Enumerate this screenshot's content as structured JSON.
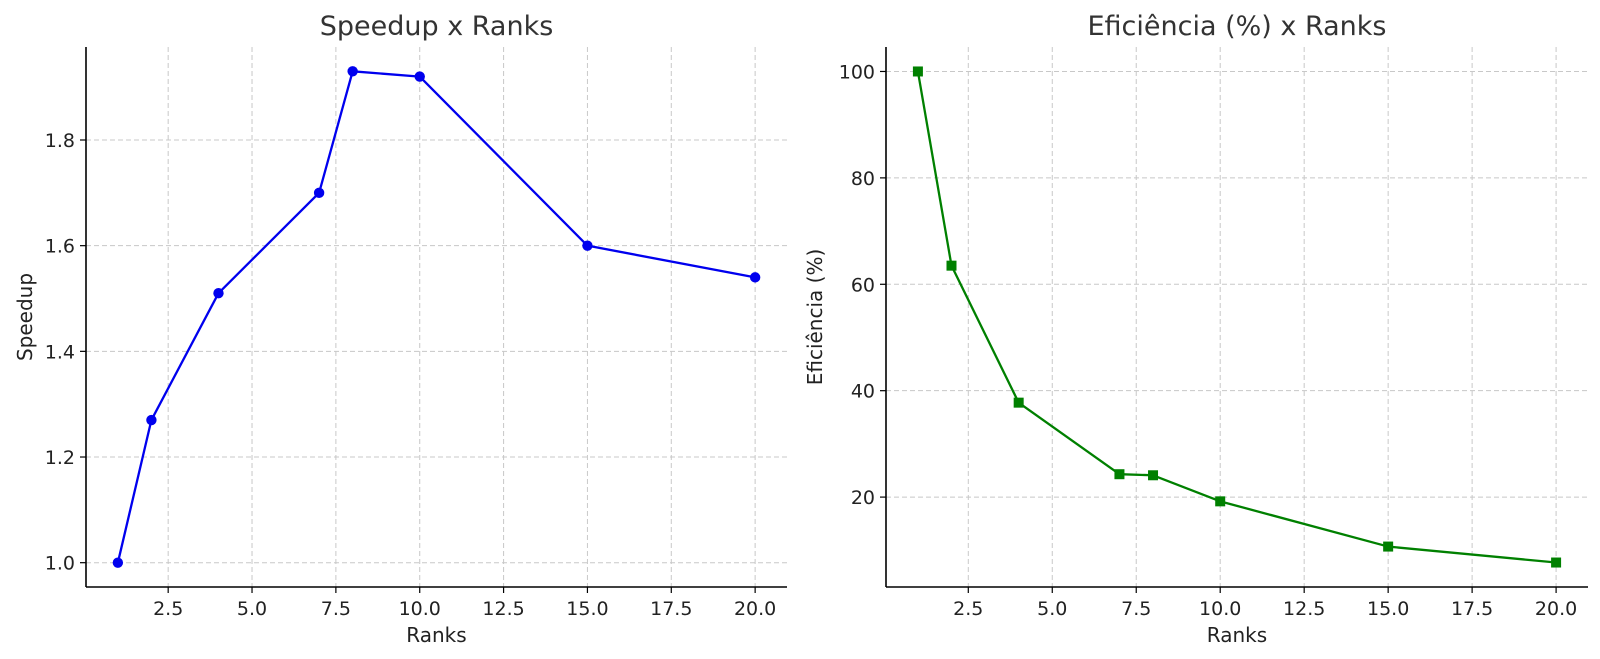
{
  "chart_data": [
    {
      "type": "line",
      "title": "Speedup x Ranks",
      "xlabel": "Ranks",
      "ylabel": "Speedup",
      "xlim": [
        0.05,
        20.95
      ],
      "ylim": [
        0.954,
        1.976
      ],
      "xticks": [
        2.5,
        5.0,
        7.5,
        10.0,
        12.5,
        15.0,
        17.5,
        20.0
      ],
      "xtick_labels": [
        "2.5",
        "5.0",
        "7.5",
        "10.0",
        "12.5",
        "15.0",
        "17.5",
        "20.0"
      ],
      "yticks": [
        1.0,
        1.2,
        1.4,
        1.6,
        1.8
      ],
      "ytick_labels": [
        "1.0",
        "1.2",
        "1.4",
        "1.6",
        "1.8"
      ],
      "grid": true,
      "marker": "circle",
      "color": "#0000ee",
      "series": [
        {
          "x": [
            1,
            2,
            4,
            7,
            8,
            10,
            15,
            20
          ],
          "values": [
            1.0,
            1.27,
            1.51,
            1.7,
            1.93,
            1.92,
            1.6,
            1.54
          ]
        }
      ]
    },
    {
      "type": "line",
      "title": "Eficiência (%) x Ranks",
      "xlabel": "Ranks",
      "ylabel": "Eficiência (%)",
      "xlim": [
        0.05,
        20.95
      ],
      "ylim": [
        3.1,
        104.6
      ],
      "xticks": [
        2.5,
        5.0,
        7.5,
        10.0,
        12.5,
        15.0,
        17.5,
        20.0
      ],
      "xtick_labels": [
        "2.5",
        "5.0",
        "7.5",
        "10.0",
        "12.5",
        "15.0",
        "17.5",
        "20.0"
      ],
      "yticks": [
        20,
        40,
        60,
        80,
        100
      ],
      "ytick_labels": [
        "20",
        "40",
        "60",
        "80",
        "100"
      ],
      "grid": true,
      "marker": "square",
      "color": "#008000",
      "series": [
        {
          "x": [
            1,
            2,
            4,
            7,
            8,
            10,
            15,
            20
          ],
          "values": [
            100,
            63.5,
            37.75,
            24.3,
            24.1,
            19.2,
            10.7,
            7.7
          ]
        }
      ]
    }
  ]
}
